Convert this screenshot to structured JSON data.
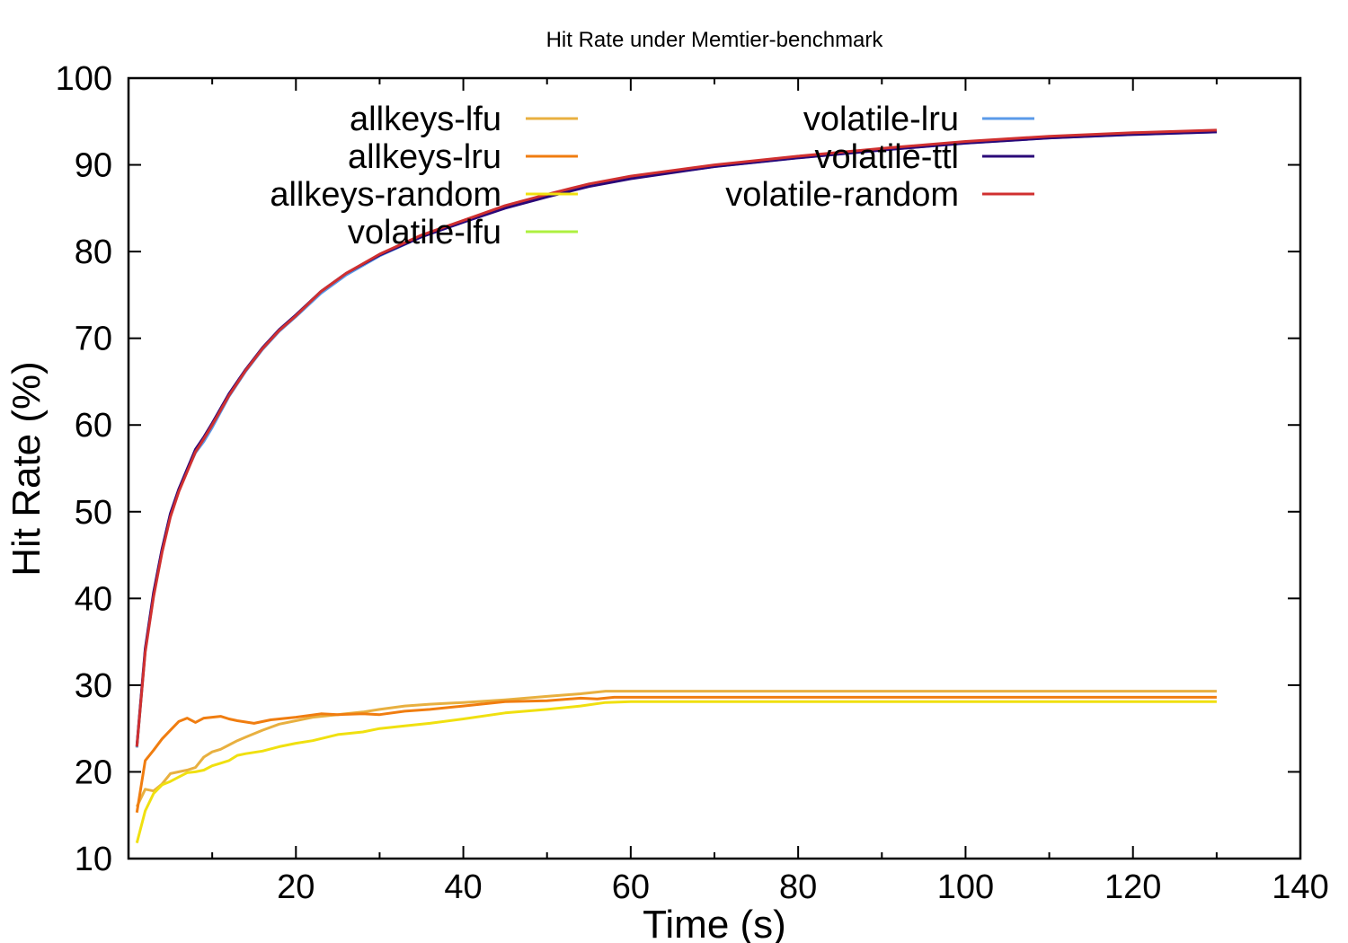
{
  "chart_data": {
    "type": "line",
    "title": "Hit Rate under Memtier-benchmark",
    "xlabel": "Time (s)",
    "ylabel": "Hit Rate (%)",
    "xlim": [
      0,
      140
    ],
    "ylim": [
      10,
      100
    ],
    "xticks": [
      20,
      40,
      60,
      80,
      100,
      120,
      140
    ],
    "yticks": [
      10,
      20,
      30,
      40,
      50,
      60,
      70,
      80,
      90,
      100
    ],
    "grid": false,
    "legend": "top, two columns",
    "series": [
      {
        "name": "allkeys-lfu",
        "color": "#e8b040",
        "x": [
          1,
          2,
          3,
          4,
          5,
          6,
          7,
          8,
          9,
          10,
          11,
          12,
          13,
          14,
          16,
          18,
          20,
          22,
          25,
          28,
          30,
          33,
          36,
          40,
          45,
          50,
          54,
          57,
          60,
          70,
          80,
          90,
          100,
          110,
          120,
          130
        ],
        "y": [
          16,
          18,
          17.8,
          18.6,
          19.8,
          20,
          20.2,
          20.5,
          21.7,
          22.3,
          22.6,
          23.1,
          23.6,
          24,
          24.8,
          25.5,
          25.9,
          26.3,
          26.6,
          26.9,
          27.2,
          27.6,
          27.8,
          28,
          28.3,
          28.7,
          29,
          29.3,
          29.3,
          29.3,
          29.3,
          29.3,
          29.3,
          29.3,
          29.3,
          29.3
        ]
      },
      {
        "name": "allkeys-lru",
        "color": "#f07d10",
        "x": [
          1,
          2,
          3,
          4,
          5,
          6,
          7,
          8,
          9,
          10,
          11,
          12,
          13,
          15,
          17,
          20,
          23,
          25,
          28,
          30,
          33,
          36,
          40,
          45,
          50,
          54,
          56,
          58,
          60,
          70,
          80,
          90,
          100,
          110,
          120,
          130
        ],
        "y": [
          15.3,
          21.3,
          22.5,
          23.8,
          24.8,
          25.8,
          26.2,
          25.7,
          26.2,
          26.3,
          26.4,
          26.1,
          25.9,
          25.6,
          26,
          26.3,
          26.7,
          26.6,
          26.7,
          26.6,
          27,
          27.2,
          27.6,
          28.1,
          28.2,
          28.5,
          28.4,
          28.6,
          28.6,
          28.6,
          28.6,
          28.6,
          28.6,
          28.6,
          28.6,
          28.6
        ]
      },
      {
        "name": "allkeys-random",
        "color": "#f0e010",
        "x": [
          1,
          2,
          3,
          4,
          5,
          6,
          7,
          8,
          9,
          10,
          11,
          12,
          13,
          14,
          16,
          18,
          20,
          22,
          25,
          28,
          30,
          33,
          36,
          40,
          45,
          50,
          54,
          57,
          60,
          70,
          80,
          90,
          100,
          110,
          120,
          130
        ],
        "y": [
          11.8,
          15.5,
          17.5,
          18.5,
          18.9,
          19.4,
          19.9,
          20,
          20.2,
          20.7,
          21,
          21.3,
          21.9,
          22.1,
          22.4,
          22.9,
          23.3,
          23.6,
          24.3,
          24.6,
          25,
          25.3,
          25.6,
          26.1,
          26.8,
          27.2,
          27.6,
          28,
          28.1,
          28.1,
          28.1,
          28.1,
          28.1,
          28.1,
          28.1,
          28.1
        ]
      },
      {
        "name": "volatile-lfu",
        "color": "#aef040",
        "x": [
          1,
          2,
          3,
          4,
          5,
          6,
          7,
          8,
          9,
          10,
          12,
          14,
          16,
          18,
          20,
          23,
          26,
          30,
          35,
          40,
          45,
          50,
          55,
          60,
          70,
          80,
          90,
          100,
          110,
          120,
          130
        ],
        "y": [
          22.8,
          34,
          40.5,
          45.5,
          49.6,
          52.5,
          54.8,
          57,
          58.5,
          60.1,
          63.5,
          66.3,
          68.8,
          70.9,
          72.6,
          75.3,
          77.4,
          79.6,
          81.8,
          83.5,
          85.2,
          86.5,
          87.7,
          88.6,
          89.9,
          90.9,
          91.8,
          92.6,
          93.2,
          93.6,
          93.9
        ]
      },
      {
        "name": "volatile-lru",
        "color": "#5a9ae8",
        "x": [
          1,
          2,
          3,
          4,
          5,
          6,
          7,
          8,
          9,
          10,
          12,
          14,
          16,
          18,
          20,
          23,
          26,
          30,
          35,
          40,
          45,
          50,
          55,
          60,
          70,
          80,
          90,
          100,
          110,
          120,
          130
        ],
        "y": [
          22.8,
          34,
          40.4,
          45.6,
          49.6,
          52.4,
          54.7,
          56.8,
          58.1,
          59.7,
          63.3,
          66.2,
          68.7,
          70.8,
          72.5,
          75.2,
          77.3,
          79.5,
          81.7,
          83.4,
          85.1,
          86.4,
          87.6,
          88.5,
          89.8,
          90.8,
          91.7,
          92.5,
          93.1,
          93.5,
          93.8
        ]
      },
      {
        "name": "volatile-ttl",
        "color": "#2a0878",
        "x": [
          1,
          2,
          3,
          4,
          5,
          6,
          7,
          8,
          9,
          10,
          12,
          14,
          16,
          18,
          20,
          23,
          26,
          30,
          35,
          40,
          45,
          50,
          55,
          60,
          70,
          80,
          90,
          100,
          110,
          120,
          130
        ],
        "y": [
          23,
          34.2,
          40.7,
          45.7,
          49.8,
          52.6,
          54.9,
          57.2,
          58.6,
          60.2,
          63.6,
          66.4,
          68.9,
          71,
          72.7,
          75.4,
          77.5,
          79.6,
          81.7,
          83.4,
          85,
          86.3,
          87.5,
          88.4,
          89.8,
          90.8,
          91.7,
          92.5,
          93.1,
          93.5,
          93.8
        ]
      },
      {
        "name": "volatile-random",
        "color": "#d03030",
        "x": [
          1,
          2,
          3,
          4,
          5,
          6,
          7,
          8,
          9,
          10,
          12,
          14,
          16,
          18,
          20,
          23,
          26,
          30,
          35,
          40,
          45,
          50,
          55,
          60,
          70,
          80,
          90,
          100,
          110,
          120,
          130
        ],
        "y": [
          22.9,
          33.8,
          40.2,
          45.3,
          49.4,
          52.3,
          54.6,
          56.9,
          58.4,
          60,
          63.4,
          66.3,
          68.8,
          70.9,
          72.6,
          75.4,
          77.5,
          79.7,
          81.9,
          83.6,
          85.3,
          86.6,
          87.8,
          88.7,
          90,
          91,
          91.9,
          92.7,
          93.3,
          93.7,
          94
        ]
      }
    ]
  }
}
